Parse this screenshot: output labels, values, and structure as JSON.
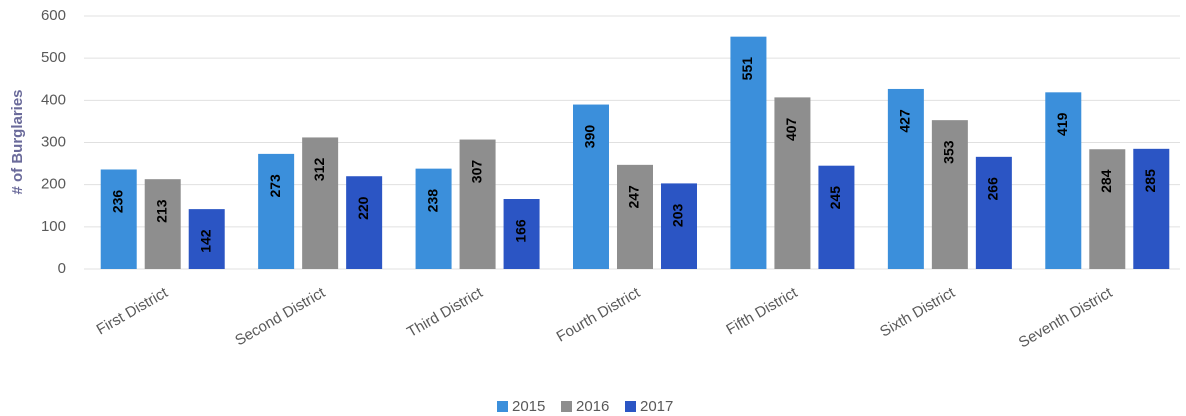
{
  "chart_data": {
    "type": "bar",
    "y_label": "# of Burglaries",
    "categories": [
      "First District",
      "Second District",
      "Third District",
      "Fourth District",
      "Fifth District",
      "Sixth District",
      "Seventh District"
    ],
    "series": [
      {
        "name": "2015",
        "color": "#3b8fdb",
        "values": [
          236,
          273,
          238,
          390,
          551,
          427,
          419
        ]
      },
      {
        "name": "2016",
        "color": "#8e8e8e",
        "values": [
          213,
          312,
          307,
          247,
          407,
          353,
          284
        ]
      },
      {
        "name": "2017",
        "color": "#2b55c4",
        "values": [
          142,
          220,
          166,
          203,
          245,
          266,
          285
        ]
      }
    ],
    "ylim": [
      0,
      600
    ],
    "yticks": [
      0,
      100,
      200,
      300,
      400,
      500,
      600
    ],
    "grid": true,
    "legend": "bottom"
  }
}
